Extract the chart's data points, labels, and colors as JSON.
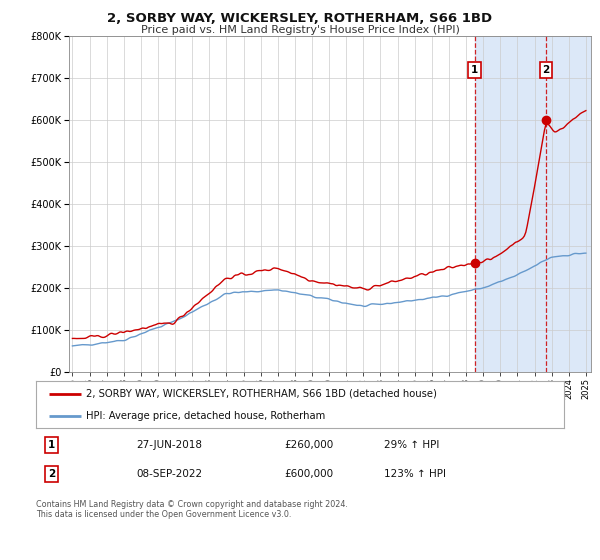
{
  "title": "2, SORBY WAY, WICKERSLEY, ROTHERHAM, S66 1BD",
  "subtitle": "Price paid vs. HM Land Registry's House Price Index (HPI)",
  "legend_line1": "2, SORBY WAY, WICKERSLEY, ROTHERHAM, S66 1BD (detached house)",
  "legend_line2": "HPI: Average price, detached house, Rotherham",
  "sale1_date": "27-JUN-2018",
  "sale1_price": 260000,
  "sale1_pct": "29%",
  "sale2_date": "08-SEP-2022",
  "sale2_price": 600000,
  "sale2_pct": "123%",
  "footnote1": "Contains HM Land Registry data © Crown copyright and database right 2024.",
  "footnote2": "This data is licensed under the Open Government Licence v3.0.",
  "red_color": "#cc0000",
  "blue_color": "#6699cc",
  "bg_shade_color": "#dce8f8",
  "sale1_year": 2018.5,
  "sale2_year": 2022.67,
  "ylim": [
    0,
    800000
  ],
  "xlim_start": 1994.8,
  "xlim_end": 2025.3
}
